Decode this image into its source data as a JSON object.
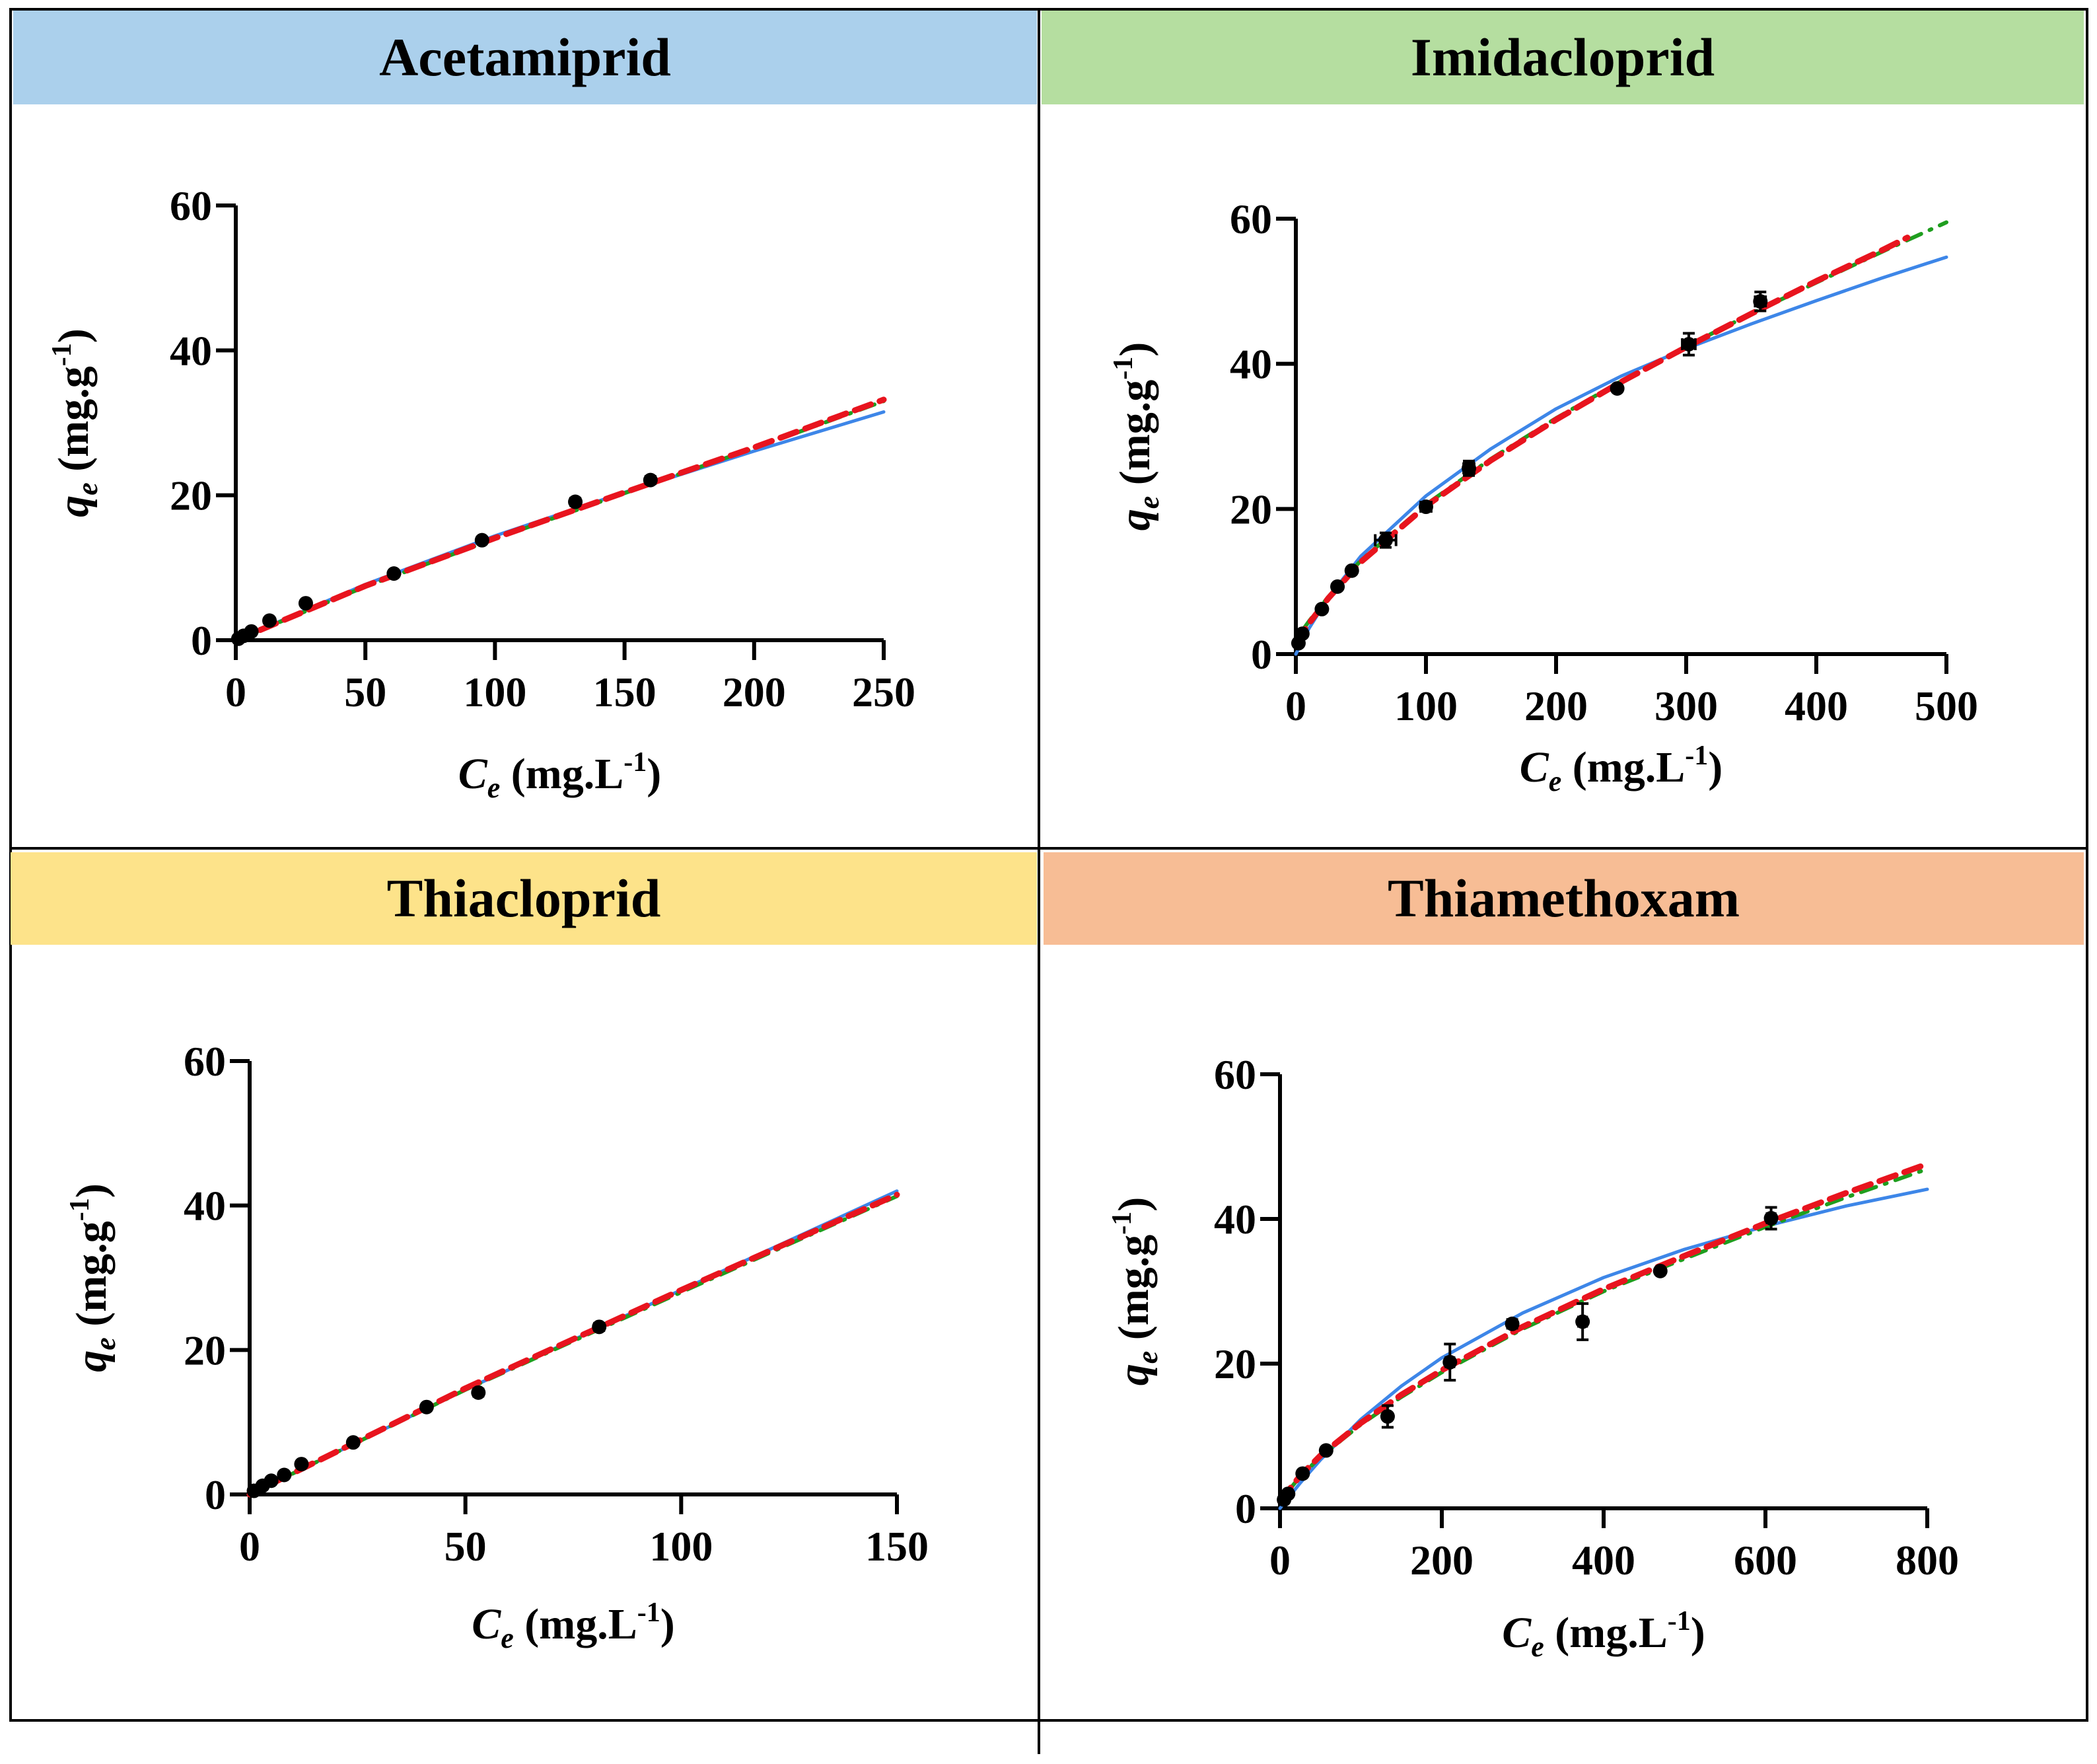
{
  "colors": {
    "acetamiprid_header": "#abd0ec",
    "imidacloprid_header": "#b5dea0",
    "thiacloprid_header": "#fde38a",
    "thiamethoxam_header": "#f7bd95",
    "blue_fit": "#3d86e8",
    "red_fit": "#e8141e",
    "green_fit": "#1f9e1f",
    "points": "#000000"
  },
  "chart_data": [
    {
      "type": "scatter",
      "title": "Acetamiprid",
      "xlabel_main": "C",
      "xlabel_sub": "e",
      "xlabel_unit": " (mg.L",
      "xlabel_sup": "-1",
      "xlabel_close": ")",
      "ylabel_main": "q",
      "ylabel_sub": "e",
      "ylabel_unit": " (mg.g",
      "ylabel_sup": "-1",
      "ylabel_close": ")",
      "xlim": [
        0,
        250
      ],
      "ylim": [
        0,
        60
      ],
      "xticks": [
        0,
        50,
        100,
        150,
        200,
        250
      ],
      "yticks": [
        0,
        20,
        40,
        60
      ],
      "points": [
        {
          "x": 1,
          "y": 0.2,
          "xerr": 0,
          "yerr": 0
        },
        {
          "x": 3,
          "y": 0.6,
          "xerr": 0,
          "yerr": 0
        },
        {
          "x": 6,
          "y": 1.2,
          "xerr": 0,
          "yerr": 0
        },
        {
          "x": 13,
          "y": 2.7,
          "xerr": 0,
          "yerr": 0
        },
        {
          "x": 27,
          "y": 5.1,
          "xerr": 0,
          "yerr": 0
        },
        {
          "x": 61,
          "y": 9.2,
          "xerr": 0,
          "yerr": 0
        },
        {
          "x": 95,
          "y": 13.8,
          "xerr": 0,
          "yerr": 0
        },
        {
          "x": 131,
          "y": 19.1,
          "xerr": 0,
          "yerr": 0.5
        },
        {
          "x": 160,
          "y": 22.1,
          "xerr": 0,
          "yerr": 0.5
        }
      ],
      "fits": [
        {
          "name": "blue",
          "x": [
            0,
            50,
            100,
            150,
            200,
            250
          ],
          "y": [
            0,
            7.7,
            14.4,
            20.4,
            26.1,
            31.5
          ]
        },
        {
          "name": "green",
          "x": [
            0,
            50,
            100,
            150,
            200,
            250
          ],
          "y": [
            0,
            7.4,
            14.0,
            20.3,
            26.5,
            33.0
          ]
        },
        {
          "name": "red",
          "x": [
            0,
            50,
            100,
            150,
            200,
            250
          ],
          "y": [
            0,
            7.5,
            14.1,
            20.4,
            26.6,
            33.2
          ]
        }
      ]
    },
    {
      "type": "scatter",
      "title": "Imidacloprid",
      "xlabel_main": "C",
      "xlabel_sub": "e",
      "xlabel_unit": " (mg.L",
      "xlabel_sup": "-1",
      "xlabel_close": ")",
      "ylabel_main": "q",
      "ylabel_sub": "e",
      "ylabel_unit": " (mg.g",
      "ylabel_sup": "-1",
      "ylabel_close": ")",
      "xlim": [
        0,
        500
      ],
      "ylim": [
        0,
        60
      ],
      "xticks": [
        0,
        100,
        200,
        300,
        400,
        500
      ],
      "yticks": [
        0,
        20,
        40,
        60
      ],
      "points": [
        {
          "x": 2,
          "y": 1.5,
          "xerr": 0,
          "yerr": 0
        },
        {
          "x": 5,
          "y": 2.8,
          "xerr": 0,
          "yerr": 0
        },
        {
          "x": 20,
          "y": 6.2,
          "xerr": 0,
          "yerr": 0
        },
        {
          "x": 32,
          "y": 9.3,
          "xerr": 0,
          "yerr": 0
        },
        {
          "x": 43,
          "y": 11.5,
          "xerr": 0,
          "yerr": 0
        },
        {
          "x": 69,
          "y": 15.7,
          "xerr": 8,
          "yerr": 1.0
        },
        {
          "x": 100,
          "y": 20.3,
          "xerr": 4,
          "yerr": 0.6
        },
        {
          "x": 133,
          "y": 25.6,
          "xerr": 4,
          "yerr": 1.0
        },
        {
          "x": 247,
          "y": 36.6,
          "xerr": 0,
          "yerr": 0
        },
        {
          "x": 302,
          "y": 42.7,
          "xerr": 5,
          "yerr": 1.5
        },
        {
          "x": 357,
          "y": 48.6,
          "xerr": 4,
          "yerr": 1.3
        }
      ],
      "fits": [
        {
          "name": "blue",
          "x": [
            0,
            10,
            25,
            50,
            100,
            150,
            200,
            250,
            300,
            350,
            400,
            450,
            500
          ],
          "y": [
            0,
            3.5,
            7.8,
            13.5,
            21.8,
            28.3,
            33.8,
            38.3,
            42.1,
            45.5,
            48.7,
            51.8,
            54.7
          ]
        },
        {
          "name": "green",
          "x": [
            0,
            10,
            25,
            50,
            100,
            150,
            200,
            250,
            300,
            350,
            400,
            450,
            500
          ],
          "y": [
            2.0,
            4.5,
            7.9,
            12.9,
            20.6,
            26.9,
            32.5,
            37.6,
            42.4,
            46.9,
            51.2,
            55.4,
            59.5
          ]
        },
        {
          "name": "red",
          "x": [
            0,
            10,
            25,
            50,
            100,
            150,
            200,
            250,
            300,
            350,
            400,
            450,
            470
          ],
          "y": [
            1.5,
            4.2,
            7.7,
            12.7,
            20.4,
            26.7,
            32.3,
            37.5,
            42.3,
            46.9,
            51.4,
            55.6,
            57.4
          ]
        }
      ]
    },
    {
      "type": "scatter",
      "title": "Thiacloprid",
      "xlabel_main": "C",
      "xlabel_sub": "e",
      "xlabel_unit": " (mg.L",
      "xlabel_sup": "-1",
      "xlabel_close": ")",
      "ylabel_main": "q",
      "ylabel_sub": "e",
      "ylabel_unit": " (mg.g",
      "ylabel_sup": "-1",
      "ylabel_close": ")",
      "xlim": [
        0,
        150
      ],
      "ylim": [
        0,
        60
      ],
      "xticks": [
        0,
        50,
        100,
        150
      ],
      "yticks": [
        0,
        20,
        40,
        60
      ],
      "points": [
        {
          "x": 1,
          "y": 0.5,
          "xerr": 0,
          "yerr": 0
        },
        {
          "x": 3,
          "y": 1.2,
          "xerr": 0,
          "yerr": 0
        },
        {
          "x": 5,
          "y": 1.9,
          "xerr": 0,
          "yerr": 0
        },
        {
          "x": 8,
          "y": 2.7,
          "xerr": 0,
          "yerr": 0
        },
        {
          "x": 12,
          "y": 4.2,
          "xerr": 0,
          "yerr": 0
        },
        {
          "x": 24,
          "y": 7.2,
          "xerr": 0,
          "yerr": 0
        },
        {
          "x": 41,
          "y": 12.1,
          "xerr": 0,
          "yerr": 0
        },
        {
          "x": 53,
          "y": 14.1,
          "xerr": 0,
          "yerr": 0.5
        },
        {
          "x": 81,
          "y": 23.2,
          "xerr": 0,
          "yerr": 0.5
        }
      ],
      "fits": [
        {
          "name": "blue",
          "x": [
            0,
            50,
            100,
            150
          ],
          "y": [
            0,
            14.5,
            28.3,
            42.0
          ]
        },
        {
          "name": "green",
          "x": [
            0,
            50,
            100,
            150
          ],
          "y": [
            0,
            14.5,
            28.0,
            41.3
          ]
        },
        {
          "name": "red",
          "x": [
            0,
            50,
            100,
            150
          ],
          "y": [
            0,
            14.7,
            28.3,
            41.5
          ]
        }
      ]
    },
    {
      "type": "scatter",
      "title": "Thiamethoxam",
      "xlabel_main": "C",
      "xlabel_sub": "e",
      "xlabel_unit": " (mg.L",
      "xlabel_sup": "-1",
      "xlabel_close": ")",
      "ylabel_main": "q",
      "ylabel_sub": "e",
      "ylabel_unit": " (mg.g",
      "ylabel_sup": "-1",
      "ylabel_close": ")",
      "xlim": [
        0,
        800
      ],
      "ylim": [
        0,
        60
      ],
      "xticks": [
        0,
        200,
        400,
        600,
        800
      ],
      "yticks": [
        0,
        20,
        40,
        60
      ],
      "points": [
        {
          "x": 5,
          "y": 1.2,
          "xerr": 0,
          "yerr": 0
        },
        {
          "x": 10,
          "y": 2.0,
          "xerr": 0,
          "yerr": 0
        },
        {
          "x": 28,
          "y": 4.8,
          "xerr": 0,
          "yerr": 0
        },
        {
          "x": 57,
          "y": 8.0,
          "xerr": 0,
          "yerr": 0
        },
        {
          "x": 133,
          "y": 12.7,
          "xerr": 0,
          "yerr": 1.5
        },
        {
          "x": 210,
          "y": 20.2,
          "xerr": 5,
          "yerr": 2.5
        },
        {
          "x": 287,
          "y": 25.5,
          "xerr": 0,
          "yerr": 0.6
        },
        {
          "x": 374,
          "y": 25.8,
          "xerr": 5,
          "yerr": 2.5
        },
        {
          "x": 470,
          "y": 32.8,
          "xerr": 0,
          "yerr": 0
        },
        {
          "x": 607,
          "y": 40.1,
          "xerr": 5,
          "yerr": 1.5
        }
      ],
      "fits": [
        {
          "name": "blue",
          "x": [
            0,
            25,
            50,
            100,
            150,
            200,
            300,
            400,
            500,
            600,
            700,
            800
          ],
          "y": [
            0,
            3.5,
            6.7,
            12.3,
            16.9,
            20.8,
            27.0,
            31.9,
            35.8,
            39.0,
            41.8,
            44.1
          ]
        },
        {
          "name": "green",
          "x": [
            0,
            25,
            50,
            100,
            150,
            200,
            300,
            400,
            500,
            600,
            700,
            800
          ],
          "y": [
            1.0,
            4.4,
            7.1,
            11.6,
            15.4,
            18.8,
            24.8,
            30.0,
            34.5,
            38.9,
            43.0,
            46.9
          ]
        },
        {
          "name": "red",
          "x": [
            0,
            25,
            50,
            100,
            150,
            200,
            300,
            400,
            500,
            600,
            700,
            800
          ],
          "y": [
            1.0,
            4.5,
            7.3,
            11.8,
            15.7,
            19.1,
            25.1,
            30.3,
            34.9,
            39.4,
            43.6,
            47.6
          ]
        }
      ]
    }
  ]
}
